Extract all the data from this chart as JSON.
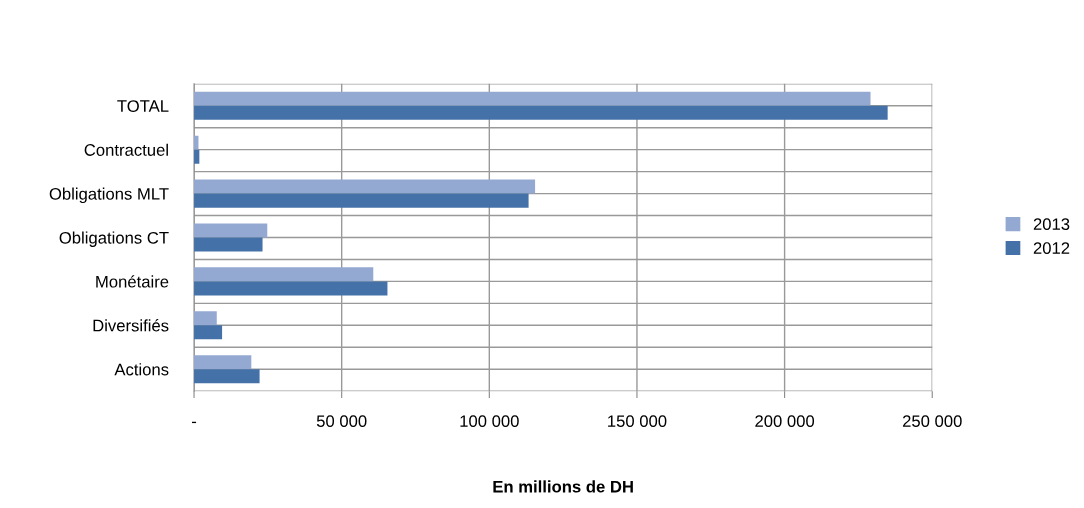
{
  "chart_data": {
    "type": "bar",
    "orientation": "horizontal",
    "xlabel": "En millions de DH",
    "categories": [
      "TOTAL",
      "Contractuel",
      "Obligations MLT",
      "Obligations CT",
      "Monétaire",
      "Diversifiés",
      "Actions"
    ],
    "series": [
      {
        "name": "2013",
        "color": "#94a9d2",
        "values": [
          229100,
          1500,
          115500,
          24800,
          60700,
          7700,
          19400
        ]
      },
      {
        "name": "2012",
        "color": "#4472a8",
        "values": [
          234900,
          1800,
          113300,
          23200,
          65500,
          9500,
          22200
        ]
      }
    ],
    "xlim": [
      0,
      250000
    ],
    "xticks": [
      {
        "value": 0,
        "label": "-"
      },
      {
        "value": 50000,
        "label": "50 000"
      },
      {
        "value": 100000,
        "label": "100 000"
      },
      {
        "value": 150000,
        "label": "150 000"
      },
      {
        "value": 200000,
        "label": "200 000"
      },
      {
        "value": 250000,
        "label": "250 000"
      }
    ],
    "grid": true,
    "legend": "right"
  }
}
